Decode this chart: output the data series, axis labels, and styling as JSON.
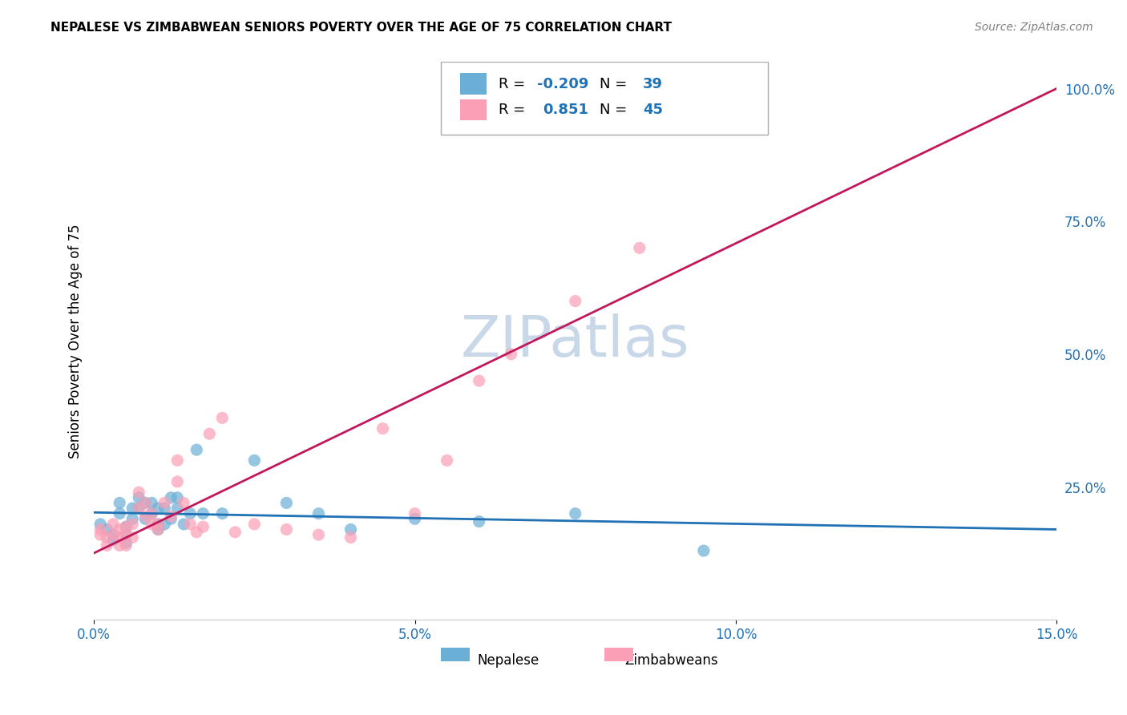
{
  "title": "NEPALESE VS ZIMBABWEAN SENIORS POVERTY OVER THE AGE OF 75 CORRELATION CHART",
  "source": "Source: ZipAtlas.com",
  "xlabel": "",
  "ylabel": "Seniors Poverty Over the Age of 75",
  "xlim": [
    0.0,
    0.15
  ],
  "ylim": [
    0.0,
    1.05
  ],
  "xtick_labels": [
    "0.0%",
    "5.0%",
    "10.0%",
    "15.0%"
  ],
  "xtick_vals": [
    0.0,
    0.05,
    0.1,
    0.15
  ],
  "ytick_labels": [
    "25.0%",
    "50.0%",
    "75.0%",
    "100.0%"
  ],
  "ytick_vals": [
    0.25,
    0.5,
    0.75,
    1.0
  ],
  "nepalese_color": "#6baed6",
  "zimbabwean_color": "#fa9fb5",
  "nepalese_line_color": "#2171b5",
  "zimbabwean_line_color": "#c2185b",
  "R_nepalese": -0.209,
  "N_nepalese": 39,
  "R_zimbabwean": 0.851,
  "N_zimbabwean": 45,
  "watermark": "ZIPatlas",
  "watermark_color": "#c8d8e8",
  "nepalese_x": [
    0.001,
    0.002,
    0.003,
    0.003,
    0.004,
    0.004,
    0.005,
    0.005,
    0.005,
    0.006,
    0.006,
    0.007,
    0.007,
    0.008,
    0.008,
    0.009,
    0.009,
    0.01,
    0.01,
    0.01,
    0.011,
    0.011,
    0.012,
    0.012,
    0.013,
    0.013,
    0.014,
    0.015,
    0.016,
    0.017,
    0.02,
    0.025,
    0.03,
    0.035,
    0.04,
    0.05,
    0.06,
    0.075,
    0.095
  ],
  "nepalese_y": [
    0.18,
    0.17,
    0.16,
    0.15,
    0.22,
    0.2,
    0.175,
    0.16,
    0.145,
    0.21,
    0.19,
    0.23,
    0.21,
    0.22,
    0.19,
    0.2,
    0.22,
    0.17,
    0.21,
    0.18,
    0.21,
    0.18,
    0.19,
    0.23,
    0.21,
    0.23,
    0.18,
    0.2,
    0.32,
    0.2,
    0.2,
    0.3,
    0.22,
    0.2,
    0.17,
    0.19,
    0.185,
    0.2,
    0.13
  ],
  "zimbabwean_x": [
    0.001,
    0.001,
    0.002,
    0.002,
    0.003,
    0.003,
    0.004,
    0.004,
    0.004,
    0.005,
    0.005,
    0.005,
    0.006,
    0.006,
    0.007,
    0.007,
    0.008,
    0.008,
    0.009,
    0.009,
    0.01,
    0.01,
    0.011,
    0.012,
    0.013,
    0.013,
    0.014,
    0.015,
    0.016,
    0.017,
    0.018,
    0.02,
    0.022,
    0.025,
    0.03,
    0.035,
    0.04,
    0.045,
    0.05,
    0.055,
    0.06,
    0.065,
    0.075,
    0.085,
    0.095
  ],
  "zimbabwean_y": [
    0.17,
    0.16,
    0.155,
    0.14,
    0.18,
    0.16,
    0.17,
    0.155,
    0.14,
    0.175,
    0.16,
    0.14,
    0.18,
    0.155,
    0.24,
    0.21,
    0.195,
    0.22,
    0.18,
    0.2,
    0.18,
    0.17,
    0.22,
    0.195,
    0.26,
    0.3,
    0.22,
    0.18,
    0.165,
    0.175,
    0.35,
    0.38,
    0.165,
    0.18,
    0.17,
    0.16,
    0.155,
    0.36,
    0.2,
    0.3,
    0.45,
    0.5,
    0.6,
    0.7,
    0.97
  ]
}
